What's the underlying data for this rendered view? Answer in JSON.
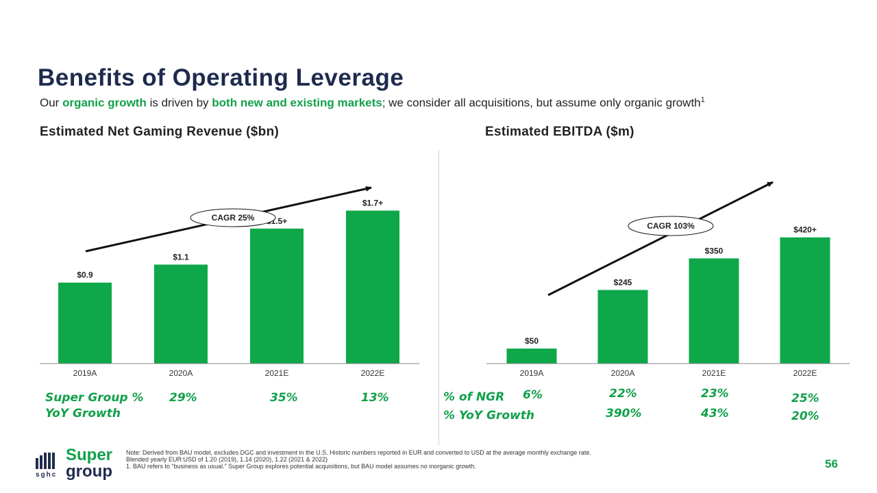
{
  "title": "Benefits of Operating Leverage",
  "subtitle": {
    "p1": "Our ",
    "hl1": "organic growth",
    "p2": " is driven by ",
    "hl2": "both new and existing markets",
    "p3": "; we consider all acquisitions,  but assume only organic growth",
    "sup": "1"
  },
  "colors": {
    "bar": "#0ea84a",
    "title": "#1f2b4d",
    "accent": "#11a04a"
  },
  "chart_data": [
    {
      "type": "bar",
      "title": "Estimated Net Gaming Revenue ($bn)",
      "categories": [
        "2019A",
        "2020A",
        "2021E",
        "2022E"
      ],
      "values": [
        0.9,
        1.1,
        1.5,
        1.7
      ],
      "value_labels": [
        "$0.9",
        "$1.1",
        "$1.5+",
        "$1.7+"
      ],
      "annotation": "CAGR 25%",
      "ylim": [
        0,
        2.1
      ],
      "grid": false
    },
    {
      "type": "bar",
      "title": "Estimated EBITDA ($m)",
      "categories": [
        "2019A",
        "2020A",
        "2021E",
        "2022E"
      ],
      "values": [
        50,
        245,
        350,
        420
      ],
      "value_labels": [
        "$50",
        "$245",
        "$350",
        "$420+"
      ],
      "annotation": "CAGR 103%",
      "ylim": [
        0,
        540
      ],
      "grid": false
    }
  ],
  "left_growth": {
    "label_line1": "Super Group %",
    "label_line2": "YoY Growth",
    "values": [
      "29%",
      "35%",
      "13%"
    ]
  },
  "right_growth": {
    "ngr_label": "% of NGR",
    "yoy_label": "% YoY Growth",
    "ngr_values": [
      "6%",
      "22%",
      "23%",
      "25%"
    ],
    "yoy_values": [
      "390%",
      "43%",
      "20%"
    ]
  },
  "logo": {
    "word1": "Super",
    "word2": "group",
    "abbr": "sghc"
  },
  "notes": {
    "line1": "Note: Derived from BAU model,  excludes DGC and investment  in the U.S. Historic numbers  reported  in EUR  and converted to USD at the average monthly exchange rate.",
    "line2": "Blended  yearly EUR:USD  of 1.20 (2019), 1.14 (2020), 1.22 (2021 & 2022)",
    "line3": "1. BAU refers to “business as usual.” Super Group explores potential  acquisitions, but BAU model  assumes no inorganic growth."
  },
  "page_number": "56"
}
